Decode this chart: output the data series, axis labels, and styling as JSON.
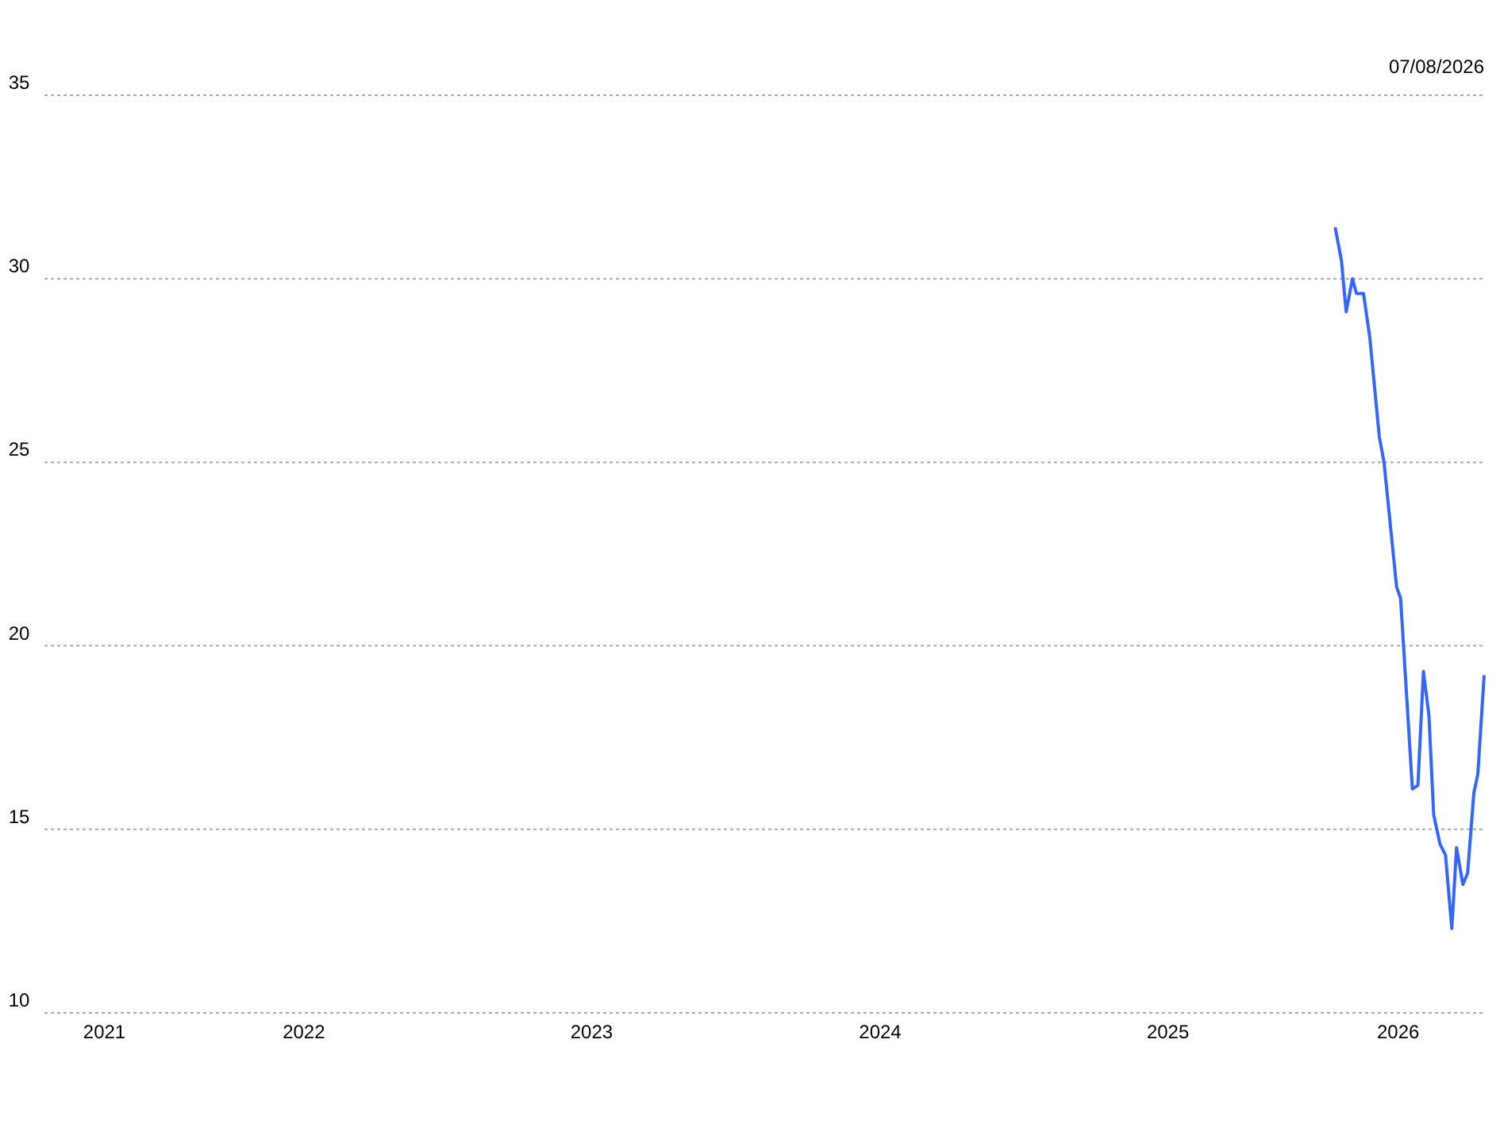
{
  "chart_data": {
    "type": "line",
    "annotations": [
      "07/08/2026"
    ],
    "x": [
      "2026-01-30",
      "2026-02-07",
      "2026-02-13",
      "2026-02-21",
      "2026-02-26",
      "2026-03-07",
      "2026-03-15",
      "2026-03-27",
      "2026-04-02",
      "2026-04-18",
      "2026-04-23",
      "2026-05-08",
      "2026-05-15",
      "2026-05-22",
      "2026-05-29",
      "2026-06-04",
      "2026-06-12",
      "2026-06-19",
      "2026-06-27",
      "2026-07-03",
      "2026-07-11",
      "2026-07-17",
      "2026-07-25",
      "2026-07-30",
      "2026-08-07"
    ],
    "series": [
      {
        "color": "#3366ff",
        "values": [
          31.4,
          30.5,
          29.1,
          30.0,
          29.6,
          29.6,
          28.4,
          25.7,
          25.0,
          21.6,
          21.3,
          16.1,
          16.2,
          19.3,
          18.1,
          15.4,
          14.6,
          14.3,
          12.3,
          14.5,
          13.5,
          13.8,
          16.0,
          16.5,
          19.2
        ]
      }
    ],
    "xlim": [
      "2021-08-07",
      "2026-08-07"
    ],
    "xticks": [
      {
        "value": "2021-10-22",
        "label": "2021"
      },
      {
        "value": "2022-07-02",
        "label": "2022"
      },
      {
        "value": "2023-07-02",
        "label": "2023"
      },
      {
        "value": "2024-07-02",
        "label": "2024"
      },
      {
        "value": "2025-07-02",
        "label": "2025"
      },
      {
        "value": "2026-04-20",
        "label": "2026"
      }
    ],
    "ylim": [
      10,
      35
    ],
    "yticks": [
      10,
      15,
      20,
      25,
      30,
      35
    ],
    "grid": "y",
    "line_style": "solid",
    "marker": "none"
  }
}
